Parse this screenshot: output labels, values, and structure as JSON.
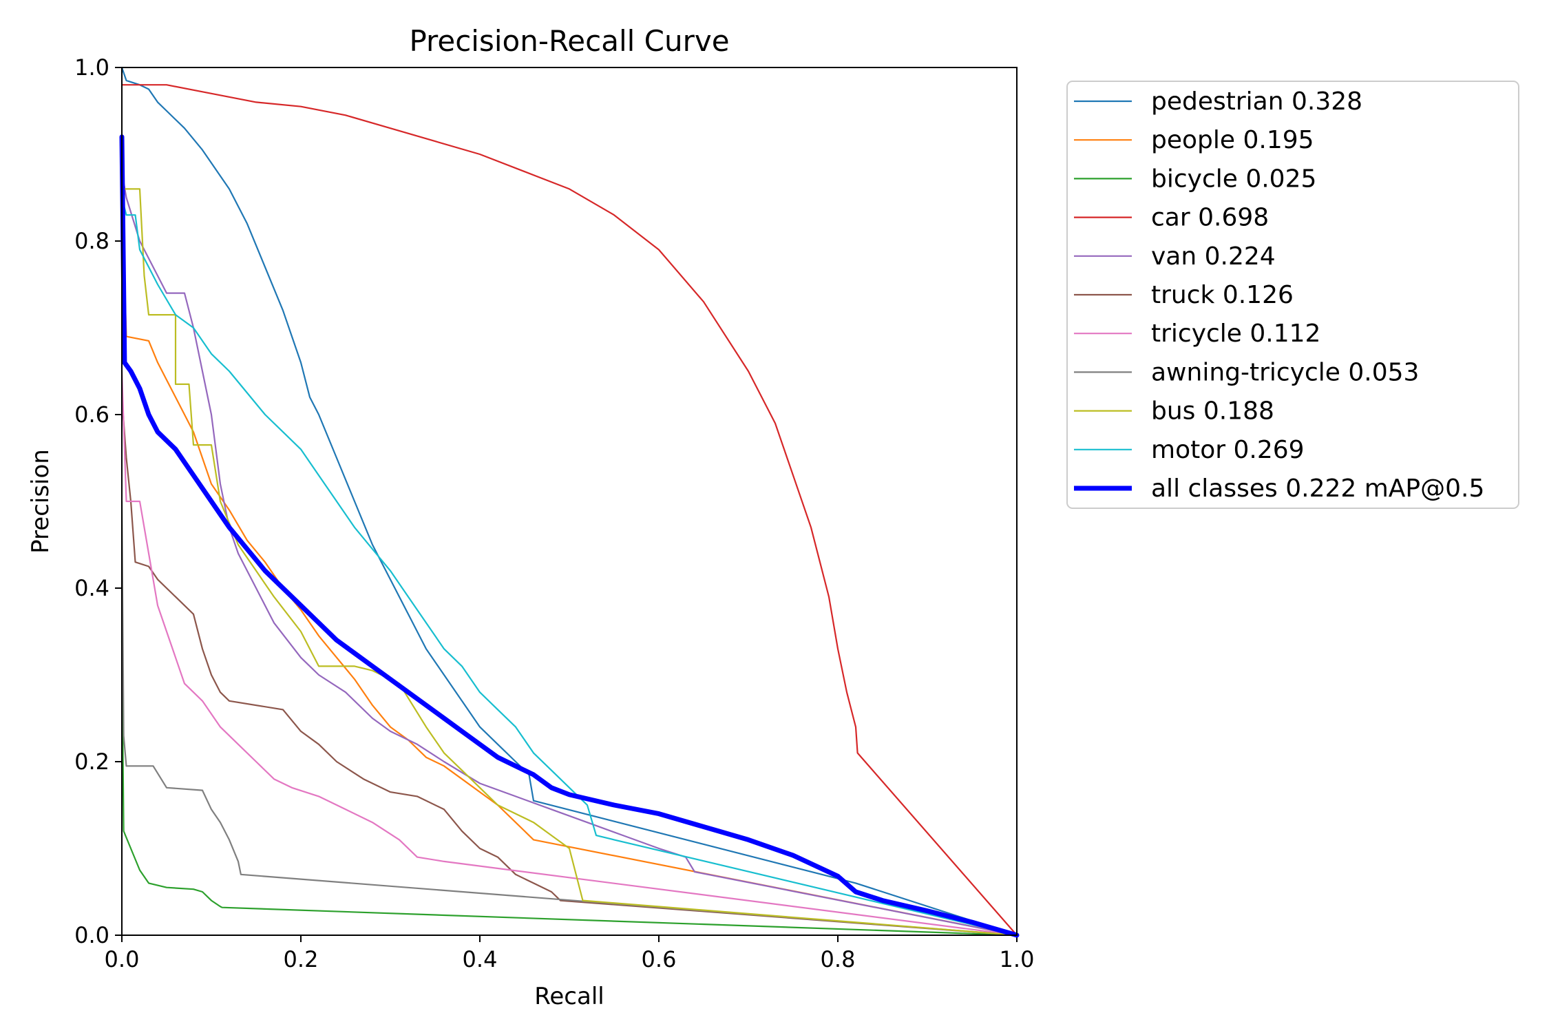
{
  "chart_data": {
    "type": "line",
    "title": "Precision-Recall Curve",
    "xlabel": "Recall",
    "ylabel": "Precision",
    "xlim": [
      0,
      1
    ],
    "ylim": [
      0,
      1
    ],
    "xticks": [
      "0.0",
      "0.2",
      "0.4",
      "0.6",
      "0.8",
      "1.0"
    ],
    "yticks": [
      "0.0",
      "0.2",
      "0.4",
      "0.6",
      "0.8",
      "1.0"
    ],
    "grid": false,
    "legend_position": "outside-right-top",
    "series": [
      {
        "name": "pedestrian 0.328",
        "color": "#1f77b4",
        "width": "thin",
        "points": [
          [
            0,
            1.0
          ],
          [
            0.005,
            0.985
          ],
          [
            0.02,
            0.98
          ],
          [
            0.03,
            0.975
          ],
          [
            0.04,
            0.96
          ],
          [
            0.05,
            0.95
          ],
          [
            0.07,
            0.93
          ],
          [
            0.09,
            0.905
          ],
          [
            0.1,
            0.89
          ],
          [
            0.12,
            0.86
          ],
          [
            0.14,
            0.82
          ],
          [
            0.16,
            0.77
          ],
          [
            0.18,
            0.72
          ],
          [
            0.19,
            0.69
          ],
          [
            0.2,
            0.66
          ],
          [
            0.21,
            0.62
          ],
          [
            0.22,
            0.6
          ],
          [
            0.24,
            0.55
          ],
          [
            0.26,
            0.5
          ],
          [
            0.28,
            0.45
          ],
          [
            0.3,
            0.41
          ],
          [
            0.32,
            0.37
          ],
          [
            0.34,
            0.33
          ],
          [
            0.36,
            0.3
          ],
          [
            0.38,
            0.27
          ],
          [
            0.4,
            0.24
          ],
          [
            0.42,
            0.22
          ],
          [
            0.44,
            0.2
          ],
          [
            0.455,
            0.185
          ],
          [
            0.46,
            0.155
          ],
          [
            0.82,
            0.06
          ],
          [
            1.0,
            0.0
          ]
        ]
      },
      {
        "name": "people 0.195",
        "color": "#ff7f0e",
        "width": "thin",
        "points": [
          [
            0,
            0.85
          ],
          [
            0.005,
            0.69
          ],
          [
            0.03,
            0.685
          ],
          [
            0.04,
            0.66
          ],
          [
            0.05,
            0.64
          ],
          [
            0.06,
            0.62
          ],
          [
            0.07,
            0.6
          ],
          [
            0.08,
            0.58
          ],
          [
            0.09,
            0.55
          ],
          [
            0.1,
            0.52
          ],
          [
            0.12,
            0.49
          ],
          [
            0.14,
            0.455
          ],
          [
            0.16,
            0.43
          ],
          [
            0.18,
            0.4
          ],
          [
            0.2,
            0.375
          ],
          [
            0.22,
            0.345
          ],
          [
            0.24,
            0.32
          ],
          [
            0.26,
            0.295
          ],
          [
            0.28,
            0.265
          ],
          [
            0.3,
            0.24
          ],
          [
            0.32,
            0.225
          ],
          [
            0.34,
            0.205
          ],
          [
            0.36,
            0.195
          ],
          [
            0.38,
            0.18
          ],
          [
            0.4,
            0.165
          ],
          [
            0.42,
            0.15
          ],
          [
            0.44,
            0.13
          ],
          [
            0.46,
            0.11
          ],
          [
            1.0,
            0.0
          ]
        ]
      },
      {
        "name": "bicycle 0.025",
        "color": "#2ca02c",
        "width": "thin",
        "points": [
          [
            0,
            0.34
          ],
          [
            0.002,
            0.12
          ],
          [
            0.01,
            0.1
          ],
          [
            0.02,
            0.075
          ],
          [
            0.03,
            0.06
          ],
          [
            0.05,
            0.055
          ],
          [
            0.08,
            0.053
          ],
          [
            0.09,
            0.05
          ],
          [
            0.1,
            0.04
          ],
          [
            0.11,
            0.033
          ],
          [
            0.112,
            0.032
          ],
          [
            1.0,
            0.0
          ]
        ]
      },
      {
        "name": "car 0.698",
        "color": "#d62728",
        "width": "thin",
        "points": [
          [
            0,
            0.98
          ],
          [
            0.05,
            0.98
          ],
          [
            0.1,
            0.97
          ],
          [
            0.15,
            0.96
          ],
          [
            0.2,
            0.955
          ],
          [
            0.25,
            0.945
          ],
          [
            0.3,
            0.93
          ],
          [
            0.35,
            0.915
          ],
          [
            0.4,
            0.9
          ],
          [
            0.45,
            0.88
          ],
          [
            0.5,
            0.86
          ],
          [
            0.55,
            0.83
          ],
          [
            0.6,
            0.79
          ],
          [
            0.65,
            0.73
          ],
          [
            0.7,
            0.65
          ],
          [
            0.73,
            0.59
          ],
          [
            0.75,
            0.53
          ],
          [
            0.77,
            0.47
          ],
          [
            0.79,
            0.39
          ],
          [
            0.8,
            0.33
          ],
          [
            0.81,
            0.28
          ],
          [
            0.82,
            0.24
          ],
          [
            0.822,
            0.21
          ],
          [
            1.0,
            0.0
          ]
        ]
      },
      {
        "name": "van 0.224",
        "color": "#9467bd",
        "width": "thin",
        "points": [
          [
            0,
            0.88
          ],
          [
            0.005,
            0.85
          ],
          [
            0.02,
            0.8
          ],
          [
            0.04,
            0.76
          ],
          [
            0.05,
            0.74
          ],
          [
            0.07,
            0.74
          ],
          [
            0.08,
            0.7
          ],
          [
            0.09,
            0.65
          ],
          [
            0.1,
            0.6
          ],
          [
            0.11,
            0.52
          ],
          [
            0.12,
            0.47
          ],
          [
            0.13,
            0.44
          ],
          [
            0.15,
            0.4
          ],
          [
            0.17,
            0.36
          ],
          [
            0.2,
            0.32
          ],
          [
            0.22,
            0.3
          ],
          [
            0.25,
            0.28
          ],
          [
            0.28,
            0.25
          ],
          [
            0.3,
            0.235
          ],
          [
            0.33,
            0.22
          ],
          [
            0.36,
            0.2
          ],
          [
            0.4,
            0.175
          ],
          [
            0.44,
            0.16
          ],
          [
            0.48,
            0.145
          ],
          [
            0.52,
            0.13
          ],
          [
            0.56,
            0.115
          ],
          [
            0.6,
            0.1
          ],
          [
            0.63,
            0.09
          ],
          [
            0.64,
            0.073
          ],
          [
            1.0,
            0.0
          ]
        ]
      },
      {
        "name": "truck 0.126",
        "color": "#8c564b",
        "width": "thin",
        "points": [
          [
            0,
            0.62
          ],
          [
            0.005,
            0.55
          ],
          [
            0.01,
            0.5
          ],
          [
            0.015,
            0.43
          ],
          [
            0.03,
            0.425
          ],
          [
            0.04,
            0.41
          ],
          [
            0.06,
            0.39
          ],
          [
            0.08,
            0.37
          ],
          [
            0.09,
            0.33
          ],
          [
            0.1,
            0.3
          ],
          [
            0.11,
            0.28
          ],
          [
            0.12,
            0.27
          ],
          [
            0.18,
            0.26
          ],
          [
            0.2,
            0.235
          ],
          [
            0.22,
            0.22
          ],
          [
            0.24,
            0.2
          ],
          [
            0.27,
            0.18
          ],
          [
            0.3,
            0.165
          ],
          [
            0.33,
            0.16
          ],
          [
            0.36,
            0.145
          ],
          [
            0.38,
            0.12
          ],
          [
            0.4,
            0.1
          ],
          [
            0.42,
            0.09
          ],
          [
            0.44,
            0.07
          ],
          [
            0.46,
            0.06
          ],
          [
            0.48,
            0.05
          ],
          [
            0.49,
            0.04
          ],
          [
            1.0,
            0.0
          ]
        ]
      },
      {
        "name": "tricycle 0.112",
        "color": "#e377c2",
        "width": "thin",
        "points": [
          [
            0,
            0.65
          ],
          [
            0.005,
            0.5
          ],
          [
            0.02,
            0.5
          ],
          [
            0.03,
            0.44
          ],
          [
            0.04,
            0.38
          ],
          [
            0.05,
            0.35
          ],
          [
            0.06,
            0.32
          ],
          [
            0.07,
            0.29
          ],
          [
            0.09,
            0.27
          ],
          [
            0.11,
            0.24
          ],
          [
            0.13,
            0.22
          ],
          [
            0.15,
            0.2
          ],
          [
            0.17,
            0.18
          ],
          [
            0.19,
            0.17
          ],
          [
            0.22,
            0.16
          ],
          [
            0.25,
            0.145
          ],
          [
            0.28,
            0.13
          ],
          [
            0.31,
            0.11
          ],
          [
            0.33,
            0.09
          ],
          [
            0.36,
            0.085
          ],
          [
            1.0,
            0.0
          ]
        ]
      },
      {
        "name": "awning-tricycle 0.053",
        "color": "#7f7f7f",
        "width": "thin",
        "points": [
          [
            0,
            0.5
          ],
          [
            0.002,
            0.23
          ],
          [
            0.005,
            0.195
          ],
          [
            0.035,
            0.195
          ],
          [
            0.05,
            0.17
          ],
          [
            0.09,
            0.167
          ],
          [
            0.1,
            0.145
          ],
          [
            0.11,
            0.13
          ],
          [
            0.12,
            0.11
          ],
          [
            0.13,
            0.085
          ],
          [
            0.133,
            0.07
          ],
          [
            1.0,
            0.0
          ]
        ]
      },
      {
        "name": "bus 0.188",
        "color": "#bcbd22",
        "width": "thin",
        "points": [
          [
            0,
            0.86
          ],
          [
            0.02,
            0.86
          ],
          [
            0.025,
            0.76
          ],
          [
            0.03,
            0.715
          ],
          [
            0.06,
            0.715
          ],
          [
            0.06,
            0.635
          ],
          [
            0.075,
            0.635
          ],
          [
            0.08,
            0.565
          ],
          [
            0.1,
            0.565
          ],
          [
            0.11,
            0.5
          ],
          [
            0.13,
            0.45
          ],
          [
            0.15,
            0.42
          ],
          [
            0.17,
            0.39
          ],
          [
            0.2,
            0.35
          ],
          [
            0.22,
            0.31
          ],
          [
            0.26,
            0.31
          ],
          [
            0.28,
            0.305
          ],
          [
            0.31,
            0.29
          ],
          [
            0.34,
            0.24
          ],
          [
            0.36,
            0.21
          ],
          [
            0.38,
            0.19
          ],
          [
            0.4,
            0.17
          ],
          [
            0.42,
            0.15
          ],
          [
            0.44,
            0.14
          ],
          [
            0.46,
            0.13
          ],
          [
            0.48,
            0.115
          ],
          [
            0.5,
            0.1
          ],
          [
            0.51,
            0.06
          ],
          [
            0.515,
            0.04
          ],
          [
            1.0,
            0.0
          ]
        ]
      },
      {
        "name": "motor 0.269",
        "color": "#17becf",
        "width": "thin",
        "points": [
          [
            0,
            0.85
          ],
          [
            0.005,
            0.83
          ],
          [
            0.015,
            0.83
          ],
          [
            0.02,
            0.79
          ],
          [
            0.03,
            0.77
          ],
          [
            0.04,
            0.75
          ],
          [
            0.06,
            0.715
          ],
          [
            0.08,
            0.7
          ],
          [
            0.1,
            0.67
          ],
          [
            0.12,
            0.65
          ],
          [
            0.14,
            0.625
          ],
          [
            0.16,
            0.6
          ],
          [
            0.18,
            0.58
          ],
          [
            0.2,
            0.56
          ],
          [
            0.22,
            0.53
          ],
          [
            0.24,
            0.5
          ],
          [
            0.26,
            0.47
          ],
          [
            0.28,
            0.445
          ],
          [
            0.3,
            0.42
          ],
          [
            0.32,
            0.39
          ],
          [
            0.34,
            0.36
          ],
          [
            0.36,
            0.33
          ],
          [
            0.38,
            0.31
          ],
          [
            0.4,
            0.28
          ],
          [
            0.42,
            0.26
          ],
          [
            0.44,
            0.24
          ],
          [
            0.46,
            0.21
          ],
          [
            0.48,
            0.19
          ],
          [
            0.5,
            0.17
          ],
          [
            0.52,
            0.15
          ],
          [
            0.53,
            0.115
          ],
          [
            0.55,
            0.11
          ],
          [
            1.0,
            0.0
          ]
        ]
      },
      {
        "name": "all classes 0.222 mAP@0.5",
        "color": "#0000ff",
        "width": "thick",
        "points": [
          [
            0,
            0.92
          ],
          [
            0.003,
            0.66
          ],
          [
            0.01,
            0.65
          ],
          [
            0.02,
            0.63
          ],
          [
            0.03,
            0.6
          ],
          [
            0.04,
            0.58
          ],
          [
            0.06,
            0.56
          ],
          [
            0.08,
            0.53
          ],
          [
            0.1,
            0.5
          ],
          [
            0.12,
            0.47
          ],
          [
            0.14,
            0.445
          ],
          [
            0.16,
            0.42
          ],
          [
            0.18,
            0.4
          ],
          [
            0.2,
            0.38
          ],
          [
            0.22,
            0.36
          ],
          [
            0.24,
            0.34
          ],
          [
            0.26,
            0.325
          ],
          [
            0.28,
            0.31
          ],
          [
            0.3,
            0.295
          ],
          [
            0.32,
            0.28
          ],
          [
            0.34,
            0.265
          ],
          [
            0.36,
            0.25
          ],
          [
            0.38,
            0.235
          ],
          [
            0.4,
            0.22
          ],
          [
            0.42,
            0.205
          ],
          [
            0.44,
            0.195
          ],
          [
            0.46,
            0.185
          ],
          [
            0.48,
            0.17
          ],
          [
            0.5,
            0.162
          ],
          [
            0.55,
            0.15
          ],
          [
            0.6,
            0.14
          ],
          [
            0.65,
            0.125
          ],
          [
            0.7,
            0.11
          ],
          [
            0.75,
            0.092
          ],
          [
            0.8,
            0.068
          ],
          [
            0.82,
            0.05
          ],
          [
            0.85,
            0.04
          ],
          [
            0.9,
            0.028
          ],
          [
            0.95,
            0.015
          ],
          [
            1.0,
            0.0
          ]
        ]
      }
    ]
  }
}
